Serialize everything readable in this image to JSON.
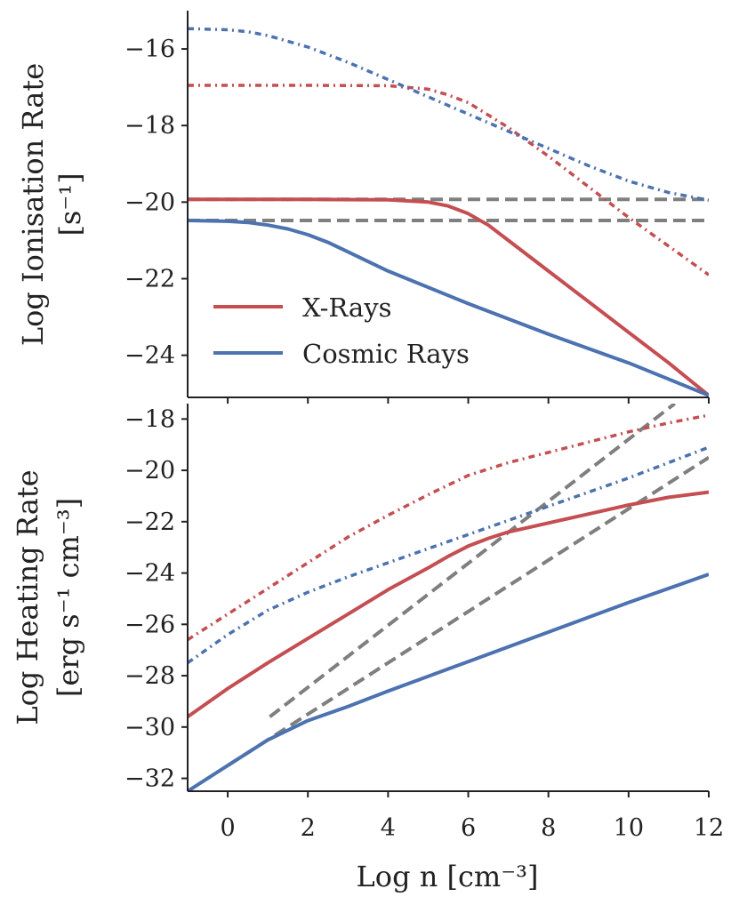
{
  "chart_data": [
    {
      "type": "line",
      "panel": "top",
      "ylabel_line1": "Log Ionisation Rate",
      "ylabel_line2": "[s⁻¹]",
      "xlim": [
        -1,
        12
      ],
      "ylim": [
        -25.1,
        -15.0
      ],
      "yticks": [
        -16,
        -18,
        -20,
        -22,
        -24
      ],
      "ytick_labels": [
        "−16",
        "−18",
        "−20",
        "−22",
        "−24"
      ],
      "legend": {
        "position": "lower-left",
        "entries": [
          "X-Rays",
          "Cosmic Rays"
        ]
      },
      "series": [
        {
          "name": "X-Rays",
          "color": "#c44e52",
          "style": "solid",
          "x": [
            -1,
            0,
            2,
            4,
            5,
            5.5,
            6,
            6.5,
            7,
            8,
            9,
            10,
            11,
            12
          ],
          "y": [
            -19.93,
            -19.93,
            -19.93,
            -19.94,
            -20.0,
            -20.1,
            -20.3,
            -20.6,
            -21.0,
            -21.8,
            -22.6,
            -23.4,
            -24.2,
            -25.05
          ]
        },
        {
          "name": "Cosmic Rays",
          "color": "#4c72b0",
          "style": "solid",
          "x": [
            -1,
            0,
            0.5,
            1,
            1.5,
            2,
            2.5,
            3,
            4,
            6,
            8,
            10,
            12
          ],
          "y": [
            -20.48,
            -20.5,
            -20.53,
            -20.6,
            -20.7,
            -20.85,
            -21.05,
            -21.3,
            -21.8,
            -22.65,
            -23.45,
            -24.2,
            -25.05
          ]
        },
        {
          "name": "X-Rays (dash-dot)",
          "color": "#c44e52",
          "style": "dashdot",
          "x": [
            -1,
            2,
            4,
            5,
            5.5,
            6,
            7,
            8,
            9,
            10,
            11,
            12
          ],
          "y": [
            -16.95,
            -16.95,
            -16.96,
            -17.05,
            -17.2,
            -17.4,
            -18.05,
            -18.8,
            -19.6,
            -20.4,
            -21.15,
            -21.9
          ]
        },
        {
          "name": "Cosmic Rays (dash-dot)",
          "color": "#4c72b0",
          "style": "dashdot",
          "x": [
            -1,
            0,
            0.5,
            1,
            2,
            3,
            4,
            5,
            6,
            7,
            8,
            9,
            10,
            11,
            12
          ],
          "y": [
            -15.47,
            -15.5,
            -15.55,
            -15.65,
            -15.95,
            -16.35,
            -16.8,
            -17.25,
            -17.7,
            -18.15,
            -18.6,
            -19.05,
            -19.45,
            -19.75,
            -19.95
          ]
        },
        {
          "name": "X-Rays reference",
          "color": "#7f7f7f",
          "style": "dashed",
          "x": [
            -1,
            12
          ],
          "y": [
            -19.93,
            -19.93
          ]
        },
        {
          "name": "Cosmic Rays reference",
          "color": "#7f7f7f",
          "style": "dashed",
          "x": [
            -1,
            12
          ],
          "y": [
            -20.48,
            -20.48
          ]
        }
      ]
    },
    {
      "type": "line",
      "panel": "bottom",
      "ylabel_line1": "Log Heating Rate",
      "ylabel_line2": "[erg s⁻¹ cm⁻³]",
      "xlabel": "Log n [cm⁻³]",
      "xlim": [
        -1,
        12
      ],
      "ylim": [
        -32.5,
        -17.4
      ],
      "xticks": [
        0,
        2,
        4,
        6,
        8,
        10,
        12
      ],
      "xtick_labels": [
        "0",
        "2",
        "4",
        "6",
        "8",
        "10",
        "12"
      ],
      "yticks": [
        -18,
        -20,
        -22,
        -24,
        -26,
        -28,
        -30,
        -32
      ],
      "ytick_labels": [
        "−18",
        "−20",
        "−22",
        "−24",
        "−26",
        "−28",
        "−30",
        "−32"
      ],
      "series": [
        {
          "name": "X-Rays",
          "color": "#c44e52",
          "style": "solid",
          "x": [
            -1,
            0,
            1,
            2,
            3,
            4,
            5,
            5.5,
            6,
            6.5,
            7,
            8,
            9,
            10,
            11,
            12
          ],
          "y": [
            -29.6,
            -28.5,
            -27.5,
            -26.55,
            -25.6,
            -24.65,
            -23.8,
            -23.35,
            -22.95,
            -22.65,
            -22.4,
            -22.05,
            -21.7,
            -21.35,
            -21.05,
            -20.85
          ]
        },
        {
          "name": "Cosmic Rays",
          "color": "#4c72b0",
          "style": "solid",
          "x": [
            -1,
            0,
            1,
            2,
            3,
            4,
            6,
            8,
            10,
            12
          ],
          "y": [
            -32.5,
            -31.5,
            -30.5,
            -29.75,
            -29.2,
            -28.6,
            -27.45,
            -26.3,
            -25.15,
            -24.05
          ]
        },
        {
          "name": "X-Rays (dash-dot)",
          "color": "#c44e52",
          "style": "dashdot",
          "x": [
            -1,
            0,
            1,
            2,
            3,
            4,
            5,
            6,
            7,
            8,
            9,
            10,
            11,
            12
          ],
          "y": [
            -26.6,
            -25.6,
            -24.6,
            -23.6,
            -22.6,
            -21.75,
            -20.95,
            -20.2,
            -19.7,
            -19.3,
            -18.9,
            -18.5,
            -18.15,
            -17.85
          ]
        },
        {
          "name": "Cosmic Rays (dash-dot)",
          "color": "#4c72b0",
          "style": "dashdot",
          "x": [
            -1,
            0,
            1,
            2,
            3,
            4,
            5,
            6,
            7,
            8,
            9,
            10,
            11,
            12
          ],
          "y": [
            -27.5,
            -26.4,
            -25.45,
            -24.75,
            -24.15,
            -23.6,
            -23.05,
            -22.5,
            -21.95,
            -21.4,
            -20.85,
            -20.3,
            -19.7,
            -19.1
          ]
        },
        {
          "name": "X-Rays reference",
          "color": "#7f7f7f",
          "style": "dashed",
          "x": [
            1.05,
            11.15
          ],
          "y": [
            -29.6,
            -17.4
          ]
        },
        {
          "name": "Cosmic Rays reference",
          "color": "#7f7f7f",
          "style": "dashed",
          "x": [
            0,
            12
          ],
          "y": [
            -31.5,
            -19.5
          ]
        }
      ]
    }
  ]
}
